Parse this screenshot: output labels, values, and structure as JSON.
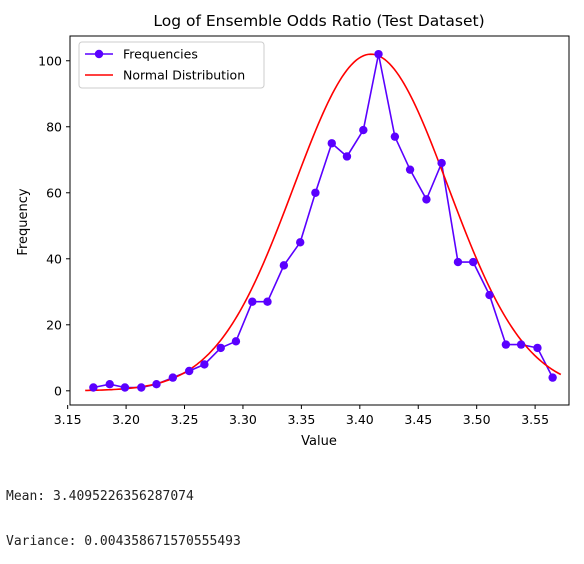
{
  "chart_data": {
    "type": "line",
    "title": "Log of Ensemble Odds Ratio (Test Dataset)",
    "xlabel": "Value",
    "ylabel": "Frequency",
    "xlim": [
      3.152,
      3.579
    ],
    "ylim": [
      -4.3,
      107.5
    ],
    "xticks": [
      3.15,
      3.2,
      3.25,
      3.3,
      3.35,
      3.4,
      3.45,
      3.5,
      3.55
    ],
    "xtick_labels": [
      "3.15",
      "3.20",
      "3.25",
      "3.30",
      "3.35",
      "3.40",
      "3.45",
      "3.50",
      "3.55"
    ],
    "yticks": [
      0,
      20,
      40,
      60,
      80,
      100
    ],
    "ytick_labels": [
      "0",
      "20",
      "40",
      "60",
      "80",
      "100"
    ],
    "grid": false,
    "legend_position": "top-left",
    "series": [
      {
        "name": "Frequencies",
        "color": "#5a00ff",
        "marker": "circle",
        "x": [
          3.172,
          3.186,
          3.199,
          3.213,
          3.226,
          3.24,
          3.254,
          3.267,
          3.281,
          3.294,
          3.308,
          3.321,
          3.335,
          3.349,
          3.362,
          3.376,
          3.389,
          3.403,
          3.416,
          3.43,
          3.443,
          3.457,
          3.47,
          3.484,
          3.497,
          3.511,
          3.525,
          3.538,
          3.552,
          3.565
        ],
        "values": [
          1,
          2,
          1,
          1,
          2,
          4,
          6,
          8,
          13,
          15,
          27,
          27,
          38,
          45,
          60,
          75,
          71,
          79,
          102,
          77,
          67,
          58,
          69,
          39,
          39,
          29,
          14,
          14,
          13,
          4
        ]
      },
      {
        "name": "Normal Distribution",
        "color": "#ff0000",
        "marker": "none",
        "curve": {
          "mean": 3.4095226356287074,
          "variance": 0.004358671570555493,
          "peak": 102,
          "x_start": 3.165,
          "x_end": 3.572
        }
      }
    ]
  },
  "stats": {
    "mean": "Mean: 3.4095226356287074",
    "variance": "Variance: 0.004358671570555493"
  }
}
